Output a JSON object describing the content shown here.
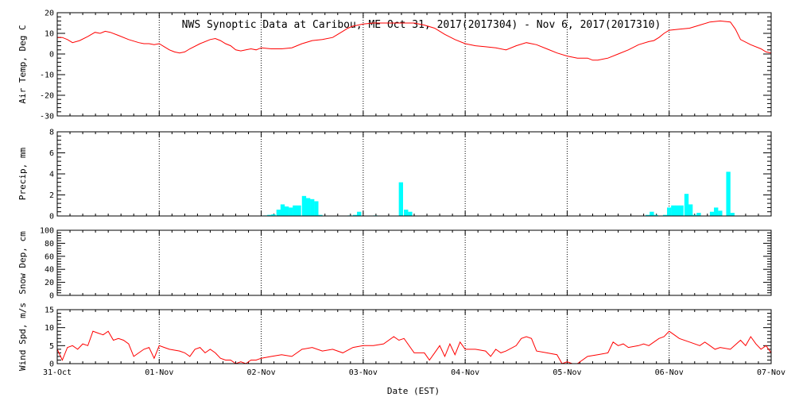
{
  "title": "NWS Synoptic Data at Caribou, ME   Oct 31, 2017(2017304) - Nov  6, 2017(2017310)",
  "xlabel": "Date (EST)",
  "x_ticks": [
    "31-Oct",
    "01-Nov",
    "02-Nov",
    "03-Nov",
    "04-Nov",
    "05-Nov",
    "06-Nov",
    "07-Nov"
  ],
  "colors": {
    "line": "#ff0000",
    "bar": "#00ffff",
    "axis": "#000000"
  },
  "chart_data": [
    {
      "type": "line",
      "ylabel": "Air Temp, Deg C",
      "ylim": [
        -30,
        20
      ],
      "yticks": [
        -30,
        -20,
        -10,
        0,
        10,
        20
      ],
      "grid": true,
      "x_unit": "days since 31-Oct 00:00",
      "points": [
        [
          0,
          8
        ],
        [
          0.05,
          8
        ],
        [
          0.1,
          7
        ],
        [
          0.15,
          5.5
        ],
        [
          0.22,
          6.5
        ],
        [
          0.3,
          8.5
        ],
        [
          0.37,
          10.5
        ],
        [
          0.42,
          10
        ],
        [
          0.47,
          11
        ],
        [
          0.52,
          10.5
        ],
        [
          0.6,
          9
        ],
        [
          0.7,
          7
        ],
        [
          0.8,
          5.5
        ],
        [
          0.85,
          5
        ],
        [
          0.9,
          5
        ],
        [
          0.95,
          4.5
        ],
        [
          1.0,
          5
        ],
        [
          1.05,
          3.5
        ],
        [
          1.1,
          2
        ],
        [
          1.15,
          1
        ],
        [
          1.2,
          0.5
        ],
        [
          1.25,
          1
        ],
        [
          1.3,
          2.5
        ],
        [
          1.4,
          5
        ],
        [
          1.5,
          7
        ],
        [
          1.55,
          7.5
        ],
        [
          1.6,
          6.5
        ],
        [
          1.65,
          5
        ],
        [
          1.7,
          4
        ],
        [
          1.75,
          2
        ],
        [
          1.8,
          1.5
        ],
        [
          1.85,
          2
        ],
        [
          1.9,
          2.5
        ],
        [
          1.95,
          2
        ],
        [
          2.0,
          3
        ],
        [
          2.1,
          2.5
        ],
        [
          2.2,
          2.5
        ],
        [
          2.3,
          3
        ],
        [
          2.4,
          5
        ],
        [
          2.5,
          6.5
        ],
        [
          2.6,
          7
        ],
        [
          2.7,
          8
        ],
        [
          2.75,
          9.5
        ],
        [
          2.8,
          11
        ],
        [
          2.85,
          12.5
        ],
        [
          2.9,
          13.5
        ],
        [
          2.95,
          14
        ],
        [
          3.0,
          14.5
        ],
        [
          3.1,
          15
        ],
        [
          3.3,
          15
        ],
        [
          3.5,
          15
        ],
        [
          3.6,
          14
        ],
        [
          3.7,
          12.5
        ],
        [
          3.8,
          9.5
        ],
        [
          3.9,
          7
        ],
        [
          4.0,
          5
        ],
        [
          4.1,
          4
        ],
        [
          4.2,
          3.5
        ],
        [
          4.3,
          3
        ],
        [
          4.4,
          2
        ],
        [
          4.5,
          4
        ],
        [
          4.6,
          5.5
        ],
        [
          4.7,
          4.5
        ],
        [
          4.8,
          2.5
        ],
        [
          4.9,
          0.5
        ],
        [
          5.0,
          -1
        ],
        [
          5.1,
          -2
        ],
        [
          5.2,
          -2
        ],
        [
          5.25,
          -3
        ],
        [
          5.3,
          -3
        ],
        [
          5.4,
          -2
        ],
        [
          5.5,
          0
        ],
        [
          5.6,
          2
        ],
        [
          5.7,
          4.5
        ],
        [
          5.8,
          6
        ],
        [
          5.85,
          6.5
        ],
        [
          5.9,
          8
        ],
        [
          5.95,
          10
        ],
        [
          6.0,
          11.5
        ],
        [
          6.1,
          12
        ],
        [
          6.2,
          12.5
        ],
        [
          6.3,
          14
        ],
        [
          6.4,
          15.5
        ],
        [
          6.5,
          16
        ],
        [
          6.6,
          15.5
        ],
        [
          6.65,
          12
        ],
        [
          6.7,
          7
        ],
        [
          6.8,
          4.5
        ],
        [
          6.9,
          2.5
        ],
        [
          6.95,
          1
        ],
        [
          7.0,
          0.5
        ]
      ]
    },
    {
      "type": "bar",
      "ylabel": "Precip, mm",
      "ylim": [
        0,
        8
      ],
      "yticks": [
        0,
        2,
        4,
        6,
        8
      ],
      "grid": true,
      "x_unit": "days since 31-Oct 00:00",
      "bar_width_days": 0.04167,
      "bars": [
        [
          2.04,
          0.05
        ],
        [
          2.08,
          0.1
        ],
        [
          2.12,
          0.15
        ],
        [
          2.17,
          0.6
        ],
        [
          2.21,
          1.1
        ],
        [
          2.25,
          0.9
        ],
        [
          2.29,
          0.8
        ],
        [
          2.33,
          1.0
        ],
        [
          2.37,
          1.0
        ],
        [
          2.42,
          1.9
        ],
        [
          2.46,
          1.7
        ],
        [
          2.5,
          1.6
        ],
        [
          2.54,
          1.4
        ],
        [
          2.58,
          0.1
        ],
        [
          2.87,
          0.05
        ],
        [
          2.92,
          0.1
        ],
        [
          2.96,
          0.4
        ],
        [
          3.12,
          0.05
        ],
        [
          3.37,
          3.2
        ],
        [
          3.42,
          0.6
        ],
        [
          3.46,
          0.4
        ],
        [
          5.79,
          0.1
        ],
        [
          5.83,
          0.4
        ],
        [
          5.87,
          0.1
        ],
        [
          5.96,
          0.1
        ],
        [
          6.0,
          0.8
        ],
        [
          6.04,
          1.0
        ],
        [
          6.08,
          1.0
        ],
        [
          6.12,
          1.0
        ],
        [
          6.17,
          2.1
        ],
        [
          6.21,
          1.1
        ],
        [
          6.25,
          0.1
        ],
        [
          6.29,
          0.3
        ],
        [
          6.42,
          0.4
        ],
        [
          6.46,
          0.8
        ],
        [
          6.5,
          0.5
        ],
        [
          6.58,
          4.2
        ],
        [
          6.62,
          0.3
        ]
      ]
    },
    {
      "type": "line",
      "ylabel": "Snow Dep, cm",
      "ylim": [
        0,
        100
      ],
      "yticks": [
        0,
        20,
        40,
        60,
        80,
        100
      ],
      "grid": true,
      "points": []
    },
    {
      "type": "line",
      "ylabel": "Wind Spd, m/s",
      "ylim": [
        0,
        15
      ],
      "yticks": [
        0,
        5,
        10,
        15
      ],
      "grid": true,
      "x_unit": "days since 31-Oct 00:00",
      "points": [
        [
          0,
          4
        ],
        [
          0.05,
          1
        ],
        [
          0.1,
          4.5
        ],
        [
          0.15,
          5
        ],
        [
          0.2,
          4
        ],
        [
          0.25,
          5.5
        ],
        [
          0.3,
          5
        ],
        [
          0.35,
          9
        ],
        [
          0.4,
          8.5
        ],
        [
          0.45,
          8
        ],
        [
          0.5,
          9
        ],
        [
          0.55,
          6.5
        ],
        [
          0.6,
          7
        ],
        [
          0.65,
          6.5
        ],
        [
          0.7,
          5.5
        ],
        [
          0.75,
          2
        ],
        [
          0.8,
          3
        ],
        [
          0.85,
          4
        ],
        [
          0.9,
          4.5
        ],
        [
          0.95,
          1.5
        ],
        [
          1.0,
          5
        ],
        [
          1.05,
          4.5
        ],
        [
          1.1,
          4
        ],
        [
          1.2,
          3.5
        ],
        [
          1.25,
          3
        ],
        [
          1.3,
          2
        ],
        [
          1.35,
          4
        ],
        [
          1.4,
          4.5
        ],
        [
          1.45,
          3
        ],
        [
          1.5,
          4
        ],
        [
          1.55,
          3
        ],
        [
          1.6,
          1.5
        ],
        [
          1.65,
          1
        ],
        [
          1.7,
          1
        ],
        [
          1.75,
          0
        ],
        [
          1.8,
          0.5
        ],
        [
          1.85,
          0
        ],
        [
          1.9,
          1
        ],
        [
          1.95,
          1
        ],
        [
          2.0,
          1.5
        ],
        [
          2.1,
          2
        ],
        [
          2.2,
          2.5
        ],
        [
          2.3,
          2
        ],
        [
          2.4,
          4
        ],
        [
          2.5,
          4.5
        ],
        [
          2.6,
          3.5
        ],
        [
          2.7,
          4
        ],
        [
          2.8,
          3
        ],
        [
          2.9,
          4.5
        ],
        [
          3.0,
          5
        ],
        [
          3.1,
          5
        ],
        [
          3.2,
          5.5
        ],
        [
          3.3,
          7.5
        ],
        [
          3.35,
          6.5
        ],
        [
          3.4,
          7
        ],
        [
          3.5,
          3
        ],
        [
          3.6,
          3
        ],
        [
          3.65,
          1
        ],
        [
          3.7,
          3
        ],
        [
          3.75,
          5
        ],
        [
          3.8,
          2
        ],
        [
          3.85,
          5.5
        ],
        [
          3.9,
          2.5
        ],
        [
          3.95,
          6
        ],
        [
          4.0,
          4
        ],
        [
          4.1,
          4
        ],
        [
          4.2,
          3.5
        ],
        [
          4.25,
          2
        ],
        [
          4.3,
          4
        ],
        [
          4.35,
          3
        ],
        [
          4.4,
          3.5
        ],
        [
          4.5,
          5
        ],
        [
          4.55,
          7
        ],
        [
          4.6,
          7.5
        ],
        [
          4.65,
          7
        ],
        [
          4.7,
          3.5
        ],
        [
          4.8,
          3
        ],
        [
          4.9,
          2.5
        ],
        [
          4.95,
          0
        ],
        [
          5.0,
          0.5
        ],
        [
          5.05,
          0
        ],
        [
          5.1,
          0
        ],
        [
          5.2,
          2
        ],
        [
          5.3,
          2.5
        ],
        [
          5.4,
          3
        ],
        [
          5.45,
          6
        ],
        [
          5.5,
          5
        ],
        [
          5.55,
          5.5
        ],
        [
          5.6,
          4.5
        ],
        [
          5.7,
          5
        ],
        [
          5.75,
          5.5
        ],
        [
          5.8,
          5
        ],
        [
          5.9,
          7
        ],
        [
          5.95,
          7.5
        ],
        [
          6.0,
          9
        ],
        [
          6.05,
          8
        ],
        [
          6.1,
          7
        ],
        [
          6.2,
          6
        ],
        [
          6.3,
          5
        ],
        [
          6.35,
          6
        ],
        [
          6.45,
          4
        ],
        [
          6.5,
          4.5
        ],
        [
          6.6,
          4
        ],
        [
          6.7,
          6.5
        ],
        [
          6.75,
          5
        ],
        [
          6.8,
          7.5
        ],
        [
          6.85,
          5.5
        ],
        [
          6.9,
          4
        ],
        [
          6.95,
          5
        ],
        [
          7.0,
          3
        ]
      ]
    }
  ]
}
